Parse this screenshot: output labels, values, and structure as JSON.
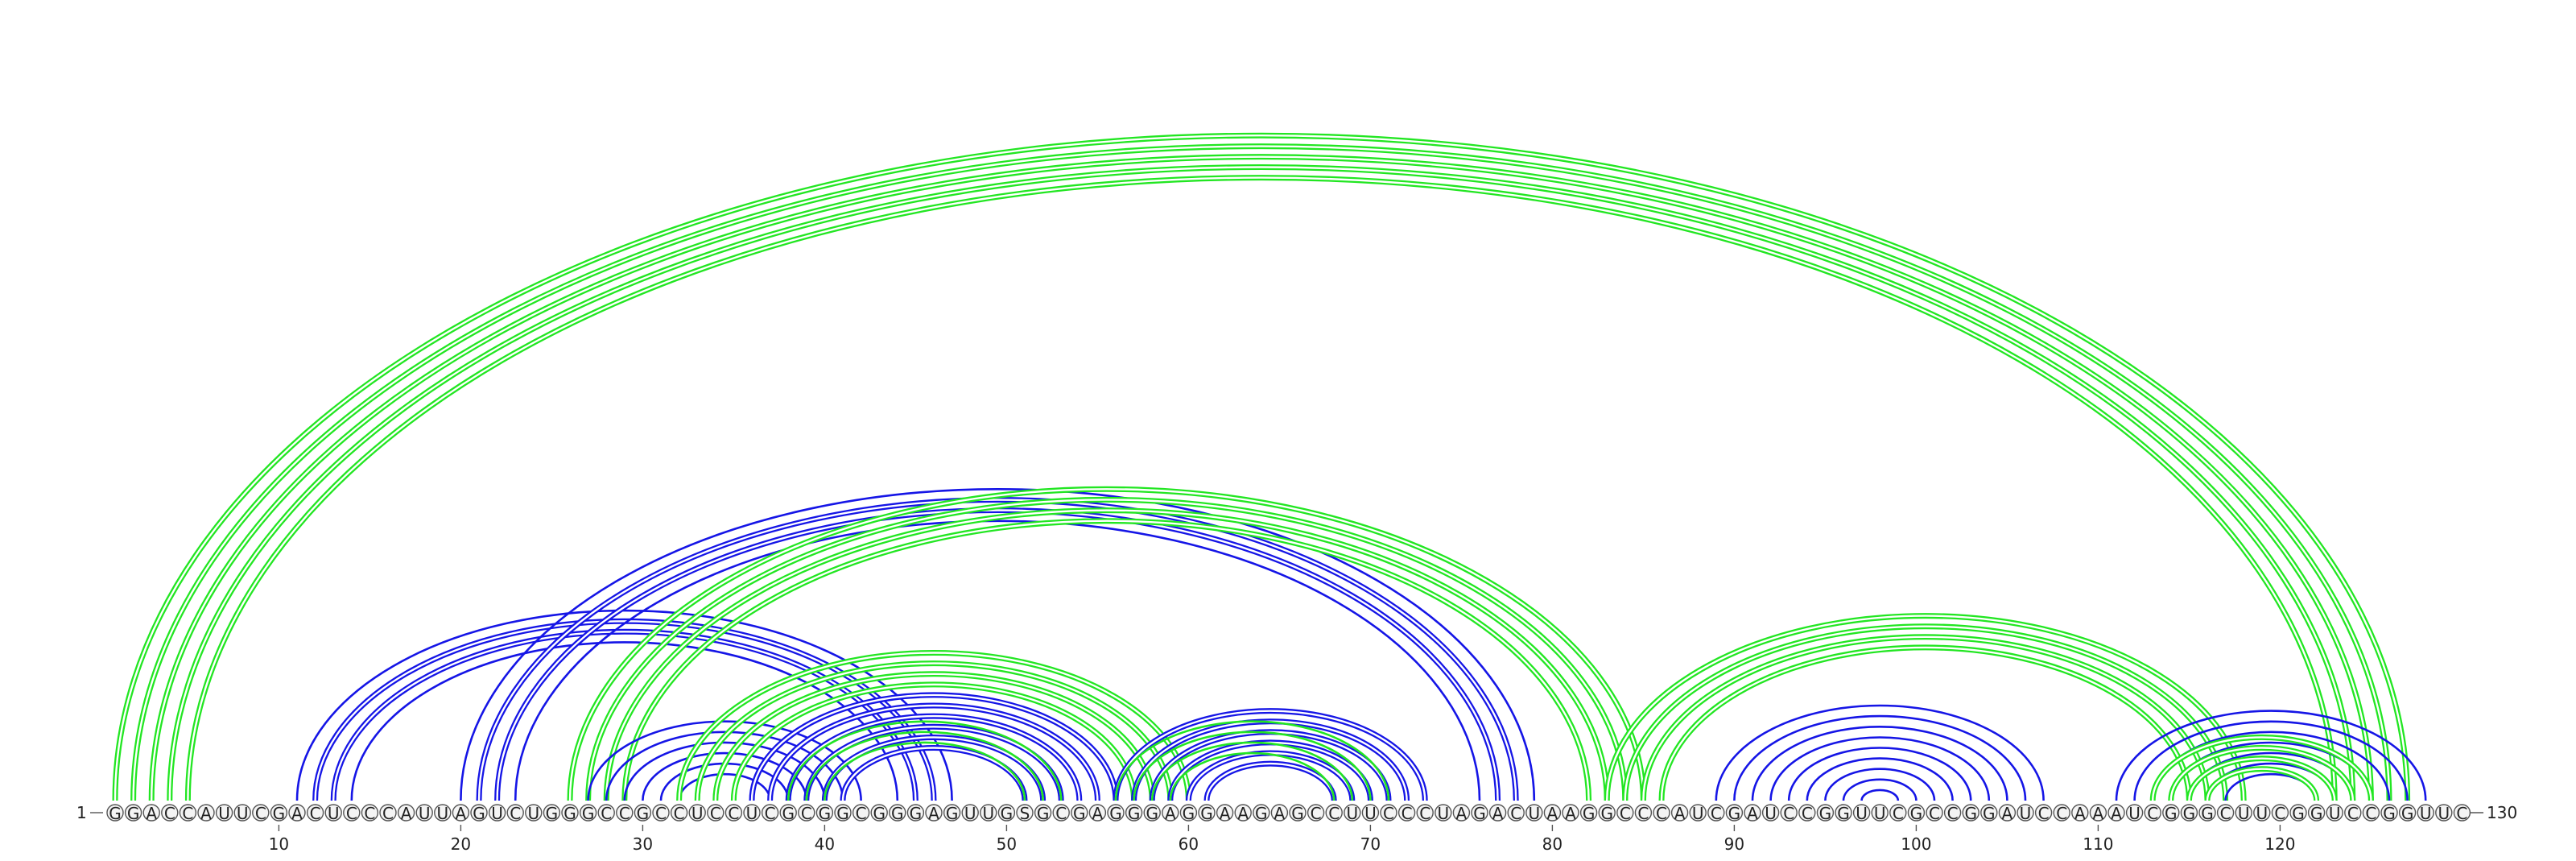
{
  "diagram": {
    "type": "rna-arc-diagram",
    "sequence": "GGACCAUUCGACUCCCAUUAGUCUGGGCCGCCUCCUCGCGGCGGGAGUUGSGCGAGGGAGGAAGAGCCUUCCCUAGACUAAGGCCCAUCGAUCCGGUUCGCCGGAUCCAAAUCGGGCUUCGGUCCGGUUC",
    "length": 130,
    "start_label": "1",
    "end_label": "130",
    "tick_labels": [
      "10",
      "20",
      "30",
      "40",
      "50",
      "60",
      "70",
      "80",
      "90",
      "100",
      "110",
      "120",
      "130"
    ],
    "colors": {
      "blue": "#1515e6",
      "green": "#22e622"
    },
    "arc_groups": [
      {
        "name": "outer-green-pseudoknot",
        "color": "green",
        "line": "double",
        "i": 1,
        "j": 127,
        "count": 5
      },
      {
        "name": "blue-stem-a",
        "color": "blue",
        "line": "single",
        "i": 11,
        "j": 47,
        "count": 4
      },
      {
        "name": "blue-stem-a-double",
        "color": "blue",
        "line": "double",
        "i": 12,
        "j": 46,
        "count": 2
      },
      {
        "name": "blue-stem-b",
        "color": "blue",
        "line": "single",
        "i": 20,
        "j": 79,
        "count": 4
      },
      {
        "name": "blue-stem-b-double",
        "color": "blue",
        "line": "double",
        "i": 21,
        "j": 78,
        "count": 2
      },
      {
        "name": "green-mid-pseudoknot",
        "color": "green",
        "line": "double",
        "i": 26,
        "j": 85,
        "count": 4
      },
      {
        "name": "blue-stem-c",
        "color": "blue",
        "line": "single",
        "i": 27,
        "j": 42,
        "count": 6
      },
      {
        "name": "green-stem-d",
        "color": "green",
        "line": "double",
        "i": 32,
        "j": 60,
        "count": 4
      },
      {
        "name": "blue-stem-e",
        "color": "blue",
        "line": "double",
        "i": 36,
        "j": 56,
        "count": 6
      },
      {
        "name": "green-stem-f",
        "color": "green",
        "line": "single",
        "i": 38,
        "j": 53,
        "count": 3
      },
      {
        "name": "blue-stem-g",
        "color": "blue",
        "line": "double",
        "i": 56,
        "j": 73,
        "count": 6
      },
      {
        "name": "green-stem-h",
        "color": "green",
        "line": "single",
        "i": 56,
        "j": 71,
        "count": 4
      },
      {
        "name": "green-stem-i",
        "color": "green",
        "line": "double",
        "i": 83,
        "j": 118,
        "count": 4
      },
      {
        "name": "blue-hairpin-j",
        "color": "blue",
        "line": "single",
        "i": 89,
        "j": 107,
        "count": 9
      },
      {
        "name": "blue-stem-k",
        "color": "blue",
        "line": "single",
        "i": 111,
        "j": 128,
        "count": 7
      },
      {
        "name": "green-stem-l",
        "color": "green",
        "line": "double",
        "i": 113,
        "j": 125,
        "count": 4
      }
    ]
  }
}
